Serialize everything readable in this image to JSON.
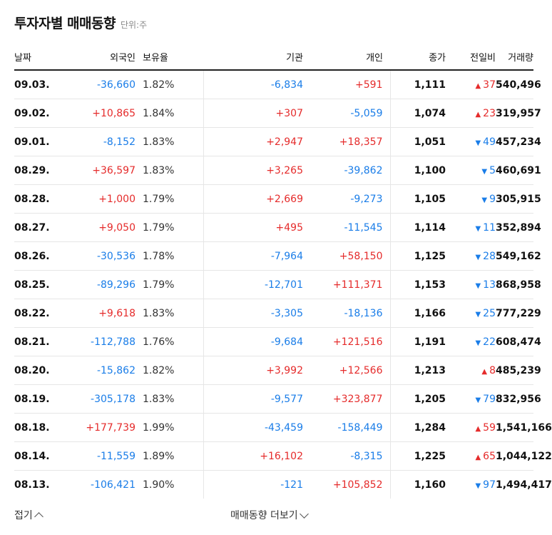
{
  "header": {
    "title": "투자자별 매매동향",
    "unit": "단위:주"
  },
  "columns": [
    "날짜",
    "외국인",
    "보유율",
    "기관",
    "개인",
    "종가",
    "전일비",
    "거래량"
  ],
  "colors": {
    "rise": "#e52b2b",
    "fall": "#1a7de8"
  },
  "rows": [
    {
      "date": "09.03.",
      "foreign": "-36,660",
      "hold": "1.82%",
      "inst": "-6,834",
      "indiv": "+591",
      "close": "1,111",
      "chg": "37",
      "dir": "up",
      "vol": "540,496"
    },
    {
      "date": "09.02.",
      "foreign": "+10,865",
      "hold": "1.84%",
      "inst": "+307",
      "indiv": "-5,059",
      "close": "1,074",
      "chg": "23",
      "dir": "up",
      "vol": "319,957"
    },
    {
      "date": "09.01.",
      "foreign": "-8,152",
      "hold": "1.83%",
      "inst": "+2,947",
      "indiv": "+18,357",
      "close": "1,051",
      "chg": "49",
      "dir": "down",
      "vol": "457,234"
    },
    {
      "date": "08.29.",
      "foreign": "+36,597",
      "hold": "1.83%",
      "inst": "+3,265",
      "indiv": "-39,862",
      "close": "1,100",
      "chg": "5",
      "dir": "down",
      "vol": "460,691"
    },
    {
      "date": "08.28.",
      "foreign": "+1,000",
      "hold": "1.79%",
      "inst": "+2,669",
      "indiv": "-9,273",
      "close": "1,105",
      "chg": "9",
      "dir": "down",
      "vol": "305,915"
    },
    {
      "date": "08.27.",
      "foreign": "+9,050",
      "hold": "1.79%",
      "inst": "+495",
      "indiv": "-11,545",
      "close": "1,114",
      "chg": "11",
      "dir": "down",
      "vol": "352,894"
    },
    {
      "date": "08.26.",
      "foreign": "-30,536",
      "hold": "1.78%",
      "inst": "-7,964",
      "indiv": "+58,150",
      "close": "1,125",
      "chg": "28",
      "dir": "down",
      "vol": "549,162"
    },
    {
      "date": "08.25.",
      "foreign": "-89,296",
      "hold": "1.79%",
      "inst": "-12,701",
      "indiv": "+111,371",
      "close": "1,153",
      "chg": "13",
      "dir": "down",
      "vol": "868,958"
    },
    {
      "date": "08.22.",
      "foreign": "+9,618",
      "hold": "1.83%",
      "inst": "-3,305",
      "indiv": "-18,136",
      "close": "1,166",
      "chg": "25",
      "dir": "down",
      "vol": "777,229"
    },
    {
      "date": "08.21.",
      "foreign": "-112,788",
      "hold": "1.76%",
      "inst": "-9,684",
      "indiv": "+121,516",
      "close": "1,191",
      "chg": "22",
      "dir": "down",
      "vol": "608,474"
    },
    {
      "date": "08.20.",
      "foreign": "-15,862",
      "hold": "1.82%",
      "inst": "+3,992",
      "indiv": "+12,566",
      "close": "1,213",
      "chg": "8",
      "dir": "up",
      "vol": "485,239"
    },
    {
      "date": "08.19.",
      "foreign": "-305,178",
      "hold": "1.83%",
      "inst": "-9,577",
      "indiv": "+323,877",
      "close": "1,205",
      "chg": "79",
      "dir": "down",
      "vol": "832,956"
    },
    {
      "date": "08.18.",
      "foreign": "+177,739",
      "hold": "1.99%",
      "inst": "-43,459",
      "indiv": "-158,449",
      "close": "1,284",
      "chg": "59",
      "dir": "up",
      "vol": "1,541,166"
    },
    {
      "date": "08.14.",
      "foreign": "-11,559",
      "hold": "1.89%",
      "inst": "+16,102",
      "indiv": "-8,315",
      "close": "1,225",
      "chg": "65",
      "dir": "up",
      "vol": "1,044,122"
    },
    {
      "date": "08.13.",
      "foreign": "-106,421",
      "hold": "1.90%",
      "inst": "-121",
      "indiv": "+105,852",
      "close": "1,160",
      "chg": "97",
      "dir": "down",
      "vol": "1,494,417"
    }
  ],
  "footer": {
    "fold_label": "접기",
    "more_label": "매매동향 더보기"
  }
}
